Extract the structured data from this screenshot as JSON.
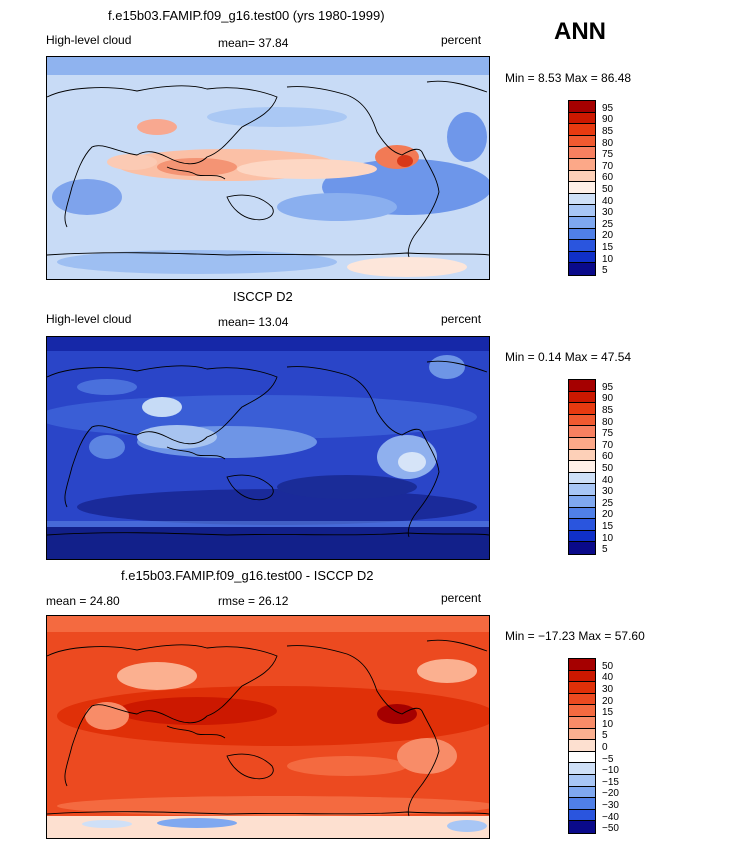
{
  "ann_label": "ANN",
  "panels": [
    {
      "title": "f.e15b03.FAMIP.f09_g16.test00 (yrs 1980-1999)",
      "left_label": "High-level cloud",
      "center_label": "mean=   37.84",
      "right_label": "percent",
      "minmax": "Min =    8.53 Max =   86.48",
      "colorbar_labels": [
        "95",
        "90",
        "85",
        "80",
        "75",
        "70",
        "60",
        "50",
        "40",
        "30",
        "25",
        "20",
        "15",
        "10",
        "5"
      ],
      "colorbar_colors": [
        "#a50000",
        "#cc1800",
        "#e83a10",
        "#f05a30",
        "#f78060",
        "#fca888",
        "#fdd0b8",
        "#fff0e8",
        "#cfe0f7",
        "#a8c6f5",
        "#7fa8f0",
        "#5080e8",
        "#2a55de",
        "#1030c8",
        "#0a0a8a"
      ]
    },
    {
      "title": "ISCCP D2",
      "left_label": "High-level cloud",
      "center_label": "mean=   13.04",
      "right_label": "percent",
      "minmax": "Min =    0.14 Max =   47.54",
      "colorbar_labels": [
        "95",
        "90",
        "85",
        "80",
        "75",
        "70",
        "60",
        "50",
        "40",
        "30",
        "25",
        "20",
        "15",
        "10",
        "5"
      ],
      "colorbar_colors": [
        "#a50000",
        "#cc1800",
        "#e83a10",
        "#f05a30",
        "#f78060",
        "#fca888",
        "#fdd0b8",
        "#fff0e8",
        "#cfe0f7",
        "#a8c6f5",
        "#7fa8f0",
        "#5080e8",
        "#2a55de",
        "#1030c8",
        "#0a0a8a"
      ]
    },
    {
      "title": "f.e15b03.FAMIP.f09_g16.test00 - ISCCP D2",
      "left_label": "mean =   24.80",
      "center_label": "rmse =   26.12",
      "right_label": "percent",
      "minmax": "Min = −17.23 Max =   57.60",
      "colorbar_labels": [
        "50",
        "40",
        "30",
        "20",
        "15",
        "10",
        "5",
        "0",
        "−5",
        "−10",
        "−15",
        "−20",
        "−30",
        "−40",
        "−50"
      ],
      "colorbar_colors": [
        "#a50000",
        "#cc1800",
        "#e03008",
        "#ec4a20",
        "#f46a40",
        "#f88c68",
        "#fbb090",
        "#fde0d0",
        "#ffffff",
        "#cfe0f7",
        "#a8c6f5",
        "#7fa8f0",
        "#5080e8",
        "#2a55de",
        "#0a0a8a"
      ]
    }
  ]
}
